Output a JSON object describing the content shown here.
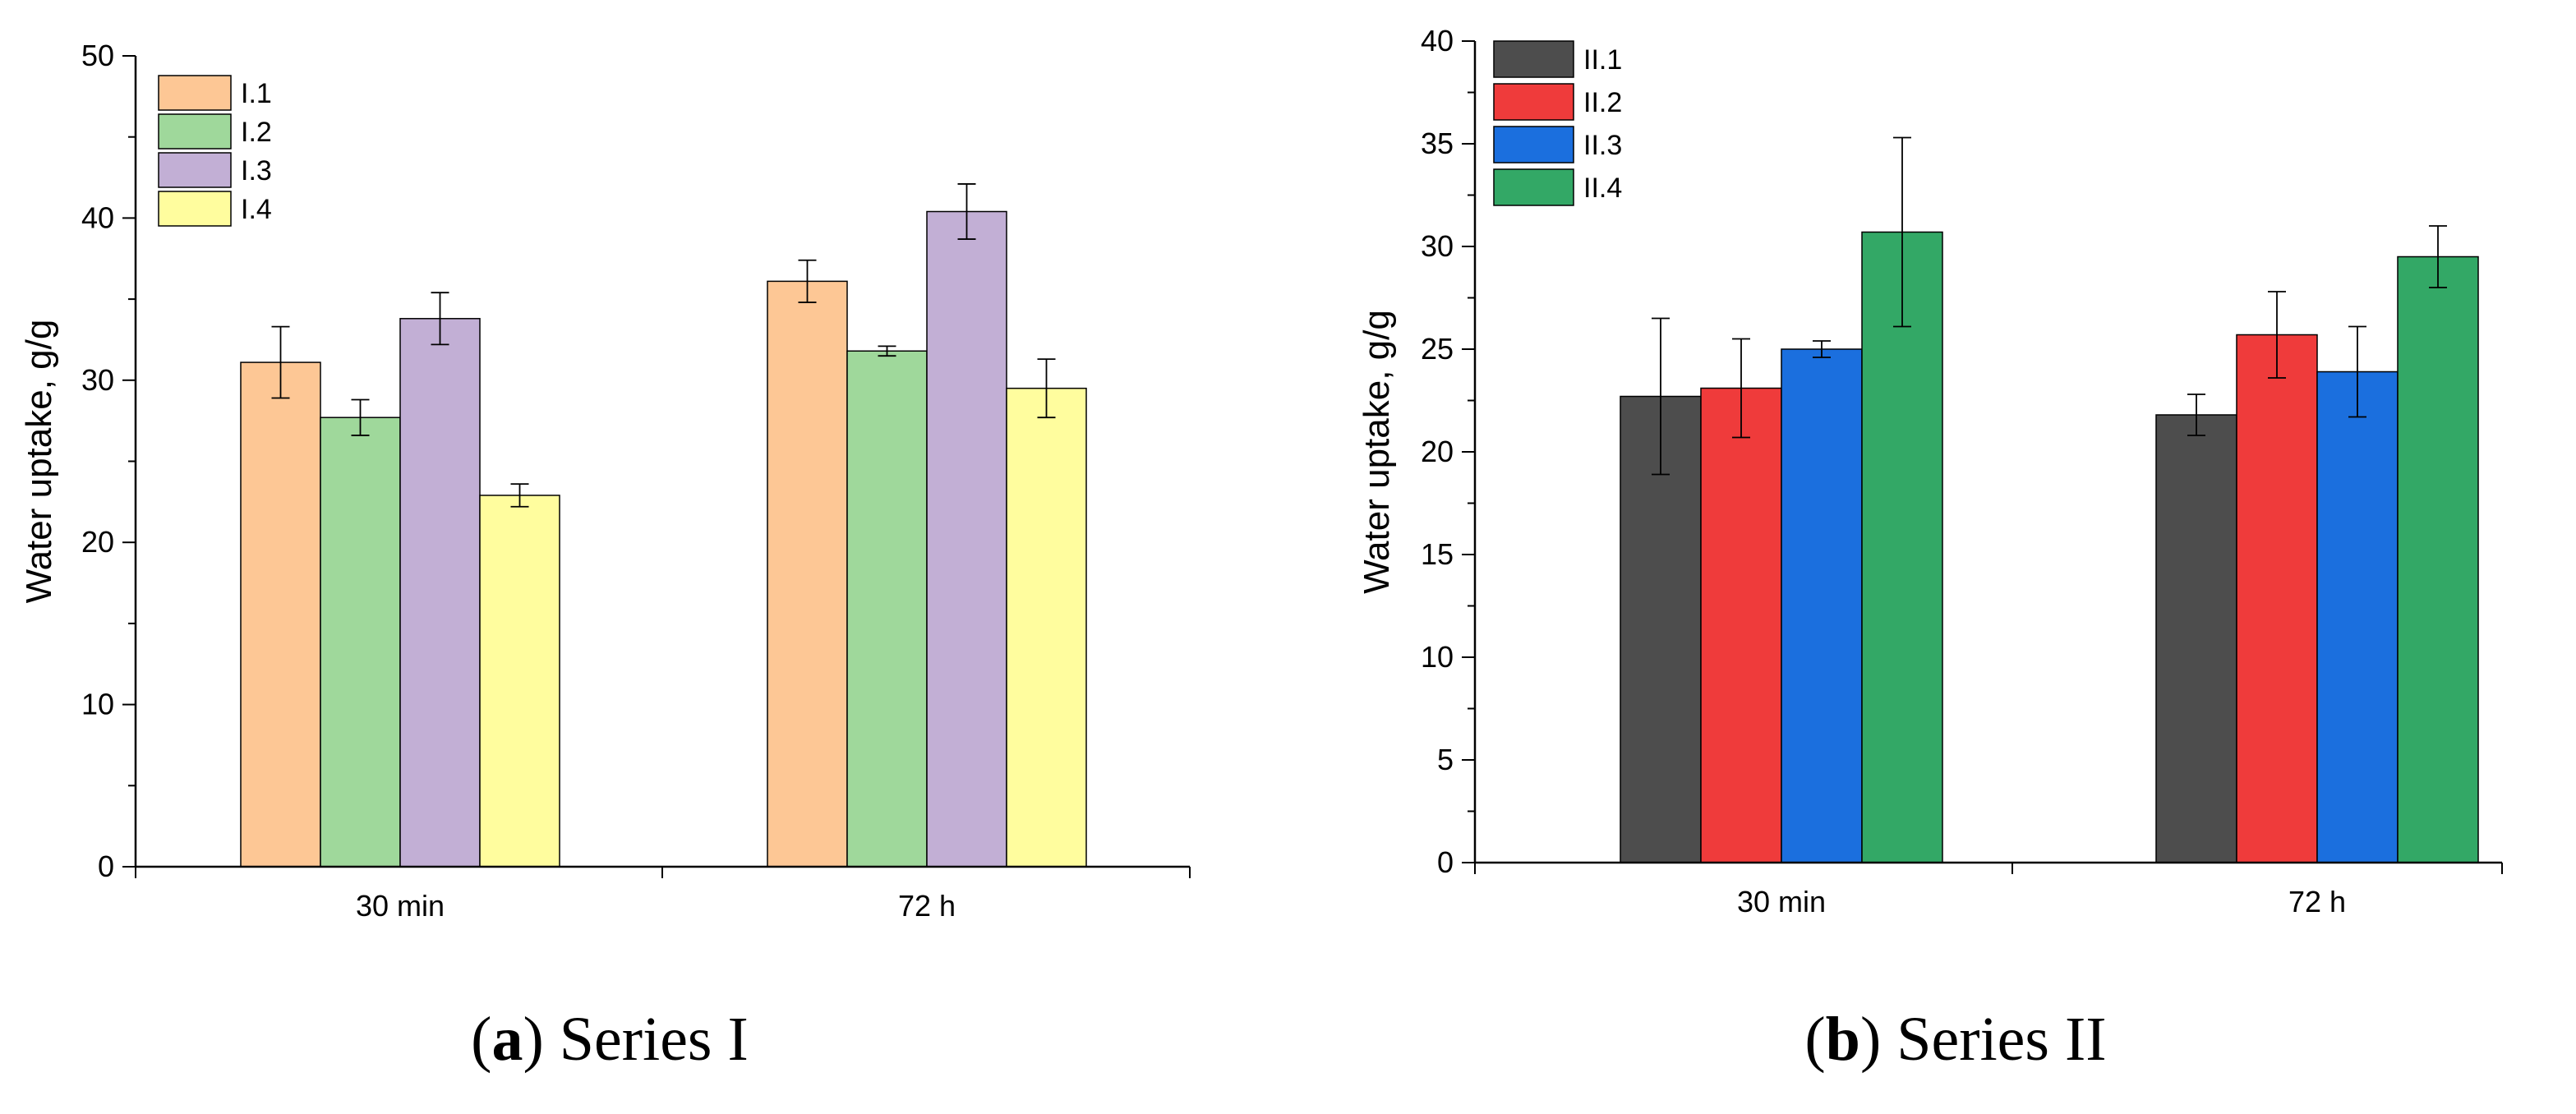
{
  "chart_data": [
    {
      "type": "bar",
      "title": "",
      "caption": {
        "open": "(",
        "letter": "a",
        "rest": ") Series I"
      },
      "xlabel": "",
      "ylabel": "Water uptake, g/g",
      "ylim": [
        0,
        50
      ],
      "yticks": [
        "0",
        "10",
        "20",
        "30",
        "40",
        "50"
      ],
      "categories": [
        "30 min",
        "72 h"
      ],
      "legend_position": "top-left",
      "series": [
        {
          "name": "I.1",
          "color": "#FDC795",
          "values": [
            31.1,
            36.1
          ],
          "errors": [
            2.2,
            1.3
          ]
        },
        {
          "name": "I.2",
          "color": "#9FD89B",
          "values": [
            27.7,
            31.8
          ],
          "errors": [
            1.1,
            0.3
          ]
        },
        {
          "name": "I.3",
          "color": "#C2AFD5",
          "values": [
            33.8,
            40.4
          ],
          "errors": [
            1.6,
            1.7
          ]
        },
        {
          "name": "I.4",
          "color": "#FFFD9E",
          "values": [
            22.9,
            29.5
          ],
          "errors": [
            0.7,
            1.8
          ]
        }
      ]
    },
    {
      "type": "bar",
      "title": "",
      "caption": {
        "open": "(",
        "letter": "b",
        "rest": ") Series II"
      },
      "xlabel": "",
      "ylabel": "Water uptake, g/g",
      "ylim": [
        0,
        40
      ],
      "yticks": [
        "0",
        "5",
        "10",
        "15",
        "20",
        "25",
        "30",
        "35",
        "40"
      ],
      "categories": [
        "30 min",
        "72 h"
      ],
      "legend_position": "top-left",
      "series": [
        {
          "name": "II.1",
          "color": "#4D4D4D",
          "values": [
            22.7,
            21.8
          ],
          "errors": [
            3.8,
            1.0
          ]
        },
        {
          "name": "II.2",
          "color": "#EF3B3B",
          "values": [
            23.1,
            25.7
          ],
          "errors": [
            2.4,
            2.1
          ]
        },
        {
          "name": "II.3",
          "color": "#1B6FDE",
          "values": [
            25.0,
            23.9
          ],
          "errors": [
            0.4,
            2.2
          ]
        },
        {
          "name": "II.4",
          "color": "#33A866",
          "values": [
            30.7,
            29.5
          ],
          "errors": [
            4.6,
            1.5
          ]
        }
      ]
    }
  ]
}
